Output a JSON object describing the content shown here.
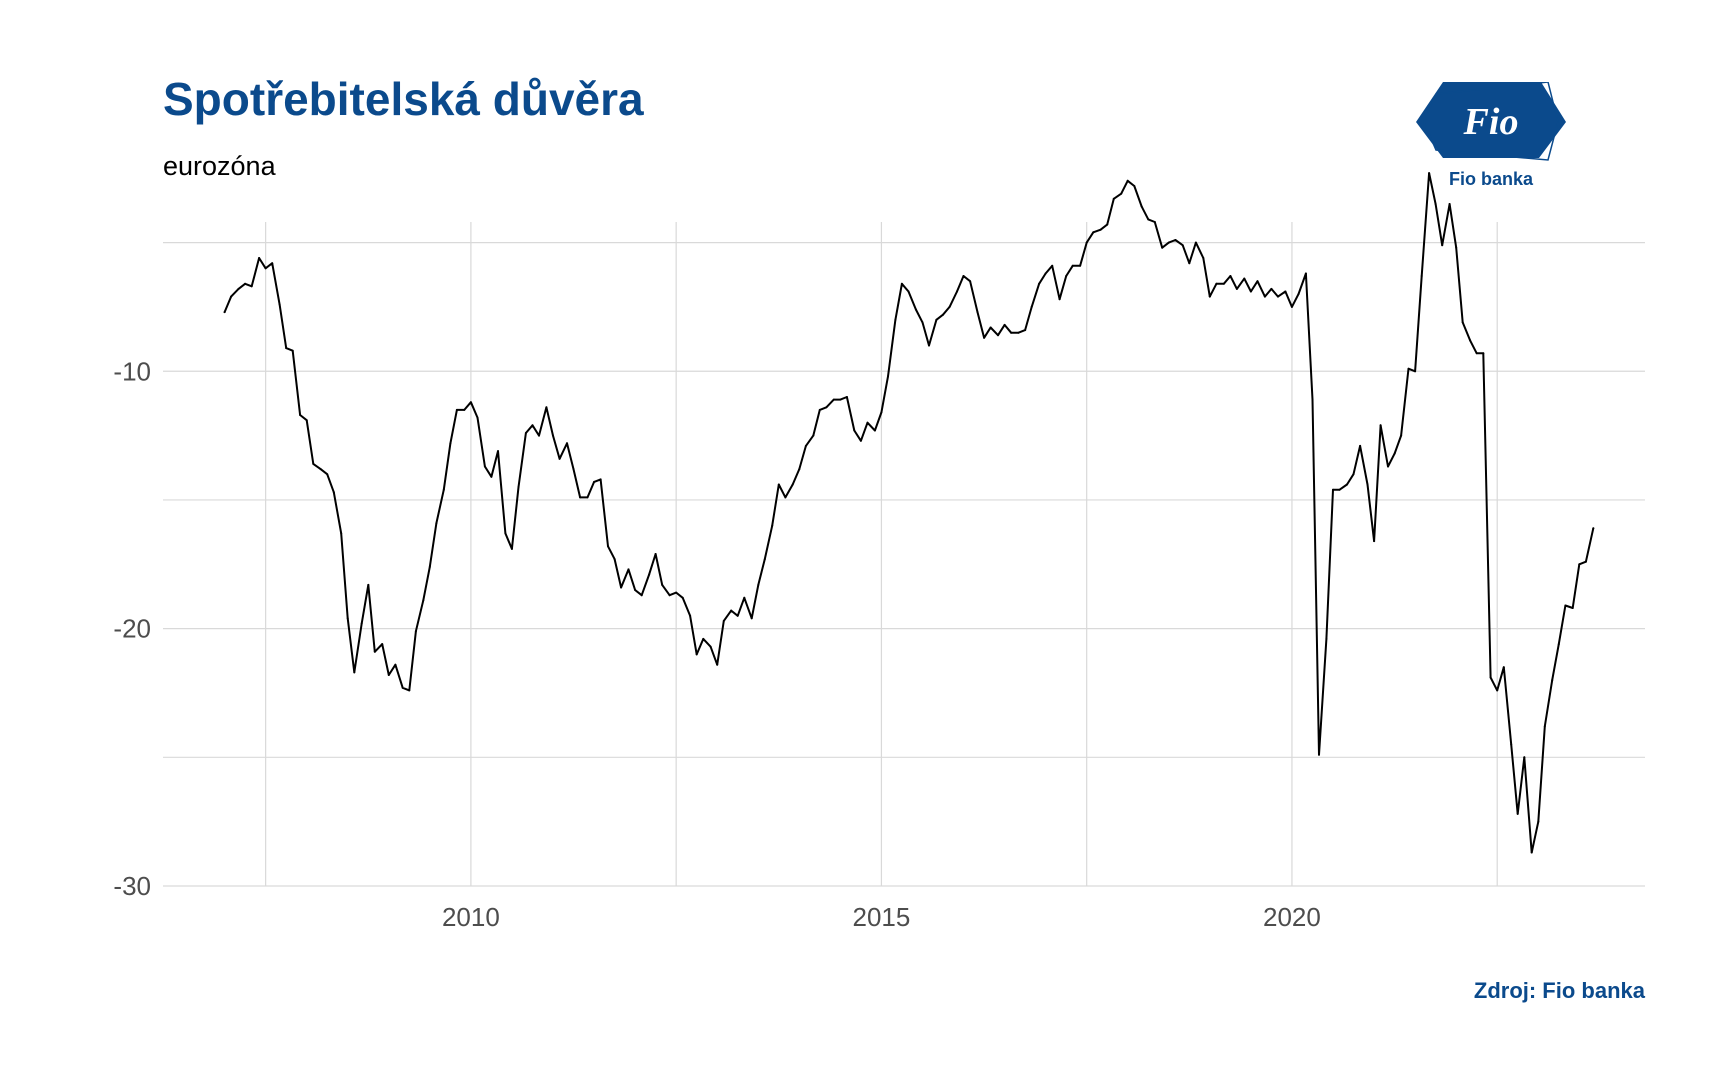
{
  "header": {
    "title": "Spotřebitelská důvěra",
    "subtitle": "eurozóna"
  },
  "logo": {
    "mark_text": "Fio",
    "caption": "Fio banka",
    "color": "#0B4A8C"
  },
  "footer": {
    "source": "Zdroj: Fio banka"
  },
  "chart_data": {
    "type": "line",
    "title": "Spotřebitelská důvěra",
    "subtitle": "eurozóna",
    "xlabel": "",
    "ylabel": "",
    "x_ticks": [
      2010,
      2015,
      2020
    ],
    "y_ticks": [
      -10,
      -20,
      -30
    ],
    "xlim": [
      2006.25,
      2024.3
    ],
    "ylim": [
      -30,
      -4.2
    ],
    "grid": true,
    "line_color": "#000000",
    "series": [
      {
        "points": [
          [
            2007.0,
            -7.7
          ],
          [
            2007.08,
            -7.1
          ],
          [
            2007.17,
            -6.8
          ],
          [
            2007.25,
            -6.6
          ],
          [
            2007.33,
            -6.7
          ],
          [
            2007.42,
            -5.6
          ],
          [
            2007.5,
            -6.0
          ],
          [
            2007.58,
            -5.8
          ],
          [
            2007.67,
            -7.4
          ],
          [
            2007.75,
            -9.1
          ],
          [
            2007.83,
            -9.2
          ],
          [
            2007.92,
            -11.7
          ],
          [
            2008.0,
            -11.9
          ],
          [
            2008.08,
            -13.6
          ],
          [
            2008.17,
            -13.8
          ],
          [
            2008.25,
            -14.0
          ],
          [
            2008.33,
            -14.7
          ],
          [
            2008.42,
            -16.3
          ],
          [
            2008.5,
            -19.6
          ],
          [
            2008.58,
            -21.7
          ],
          [
            2008.67,
            -19.8
          ],
          [
            2008.75,
            -18.3
          ],
          [
            2008.83,
            -20.9
          ],
          [
            2008.92,
            -20.6
          ],
          [
            2009.0,
            -21.8
          ],
          [
            2009.08,
            -21.4
          ],
          [
            2009.17,
            -22.3
          ],
          [
            2009.25,
            -22.4
          ],
          [
            2009.33,
            -20.1
          ],
          [
            2009.42,
            -18.9
          ],
          [
            2009.5,
            -17.6
          ],
          [
            2009.58,
            -15.9
          ],
          [
            2009.67,
            -14.6
          ],
          [
            2009.75,
            -12.8
          ],
          [
            2009.83,
            -11.5
          ],
          [
            2009.92,
            -11.5
          ],
          [
            2010.0,
            -11.2
          ],
          [
            2010.08,
            -11.8
          ],
          [
            2010.17,
            -13.7
          ],
          [
            2010.25,
            -14.1
          ],
          [
            2010.33,
            -13.1
          ],
          [
            2010.42,
            -16.3
          ],
          [
            2010.5,
            -16.9
          ],
          [
            2010.58,
            -14.5
          ],
          [
            2010.67,
            -12.4
          ],
          [
            2010.75,
            -12.1
          ],
          [
            2010.83,
            -12.5
          ],
          [
            2010.92,
            -11.4
          ],
          [
            2011.0,
            -12.5
          ],
          [
            2011.08,
            -13.4
          ],
          [
            2011.17,
            -12.8
          ],
          [
            2011.25,
            -13.8
          ],
          [
            2011.33,
            -14.9
          ],
          [
            2011.42,
            -14.9
          ],
          [
            2011.5,
            -14.3
          ],
          [
            2011.58,
            -14.2
          ],
          [
            2011.67,
            -16.8
          ],
          [
            2011.75,
            -17.3
          ],
          [
            2011.83,
            -18.4
          ],
          [
            2011.92,
            -17.7
          ],
          [
            2012.0,
            -18.5
          ],
          [
            2012.08,
            -18.7
          ],
          [
            2012.17,
            -17.9
          ],
          [
            2012.25,
            -17.1
          ],
          [
            2012.33,
            -18.3
          ],
          [
            2012.42,
            -18.7
          ],
          [
            2012.5,
            -18.6
          ],
          [
            2012.58,
            -18.8
          ],
          [
            2012.67,
            -19.5
          ],
          [
            2012.75,
            -21.0
          ],
          [
            2012.83,
            -20.4
          ],
          [
            2012.92,
            -20.7
          ],
          [
            2013.0,
            -21.4
          ],
          [
            2013.08,
            -19.7
          ],
          [
            2013.17,
            -19.3
          ],
          [
            2013.25,
            -19.5
          ],
          [
            2013.33,
            -18.8
          ],
          [
            2013.42,
            -19.6
          ],
          [
            2013.5,
            -18.3
          ],
          [
            2013.58,
            -17.3
          ],
          [
            2013.67,
            -16.0
          ],
          [
            2013.75,
            -14.4
          ],
          [
            2013.83,
            -14.9
          ],
          [
            2013.92,
            -14.4
          ],
          [
            2014.0,
            -13.8
          ],
          [
            2014.08,
            -12.9
          ],
          [
            2014.17,
            -12.5
          ],
          [
            2014.25,
            -11.5
          ],
          [
            2014.33,
            -11.4
          ],
          [
            2014.42,
            -11.1
          ],
          [
            2014.5,
            -11.1
          ],
          [
            2014.58,
            -11.0
          ],
          [
            2014.67,
            -12.3
          ],
          [
            2014.75,
            -12.7
          ],
          [
            2014.83,
            -12.0
          ],
          [
            2014.92,
            -12.3
          ],
          [
            2015.0,
            -11.6
          ],
          [
            2015.08,
            -10.2
          ],
          [
            2015.17,
            -8.0
          ],
          [
            2015.25,
            -6.6
          ],
          [
            2015.33,
            -6.9
          ],
          [
            2015.42,
            -7.6
          ],
          [
            2015.5,
            -8.1
          ],
          [
            2015.58,
            -9.0
          ],
          [
            2015.67,
            -8.0
          ],
          [
            2015.75,
            -7.8
          ],
          [
            2015.83,
            -7.5
          ],
          [
            2015.92,
            -6.9
          ],
          [
            2016.0,
            -6.3
          ],
          [
            2016.08,
            -6.5
          ],
          [
            2016.17,
            -7.7
          ],
          [
            2016.25,
            -8.7
          ],
          [
            2016.33,
            -8.3
          ],
          [
            2016.42,
            -8.6
          ],
          [
            2016.5,
            -8.2
          ],
          [
            2016.58,
            -8.5
          ],
          [
            2016.67,
            -8.5
          ],
          [
            2016.75,
            -8.4
          ],
          [
            2016.83,
            -7.5
          ],
          [
            2016.92,
            -6.6
          ],
          [
            2017.0,
            -6.2
          ],
          [
            2017.08,
            -5.9
          ],
          [
            2017.17,
            -7.2
          ],
          [
            2017.25,
            -6.3
          ],
          [
            2017.33,
            -5.9
          ],
          [
            2017.42,
            -5.9
          ],
          [
            2017.5,
            -5.0
          ],
          [
            2017.58,
            -4.6
          ],
          [
            2017.67,
            -4.5
          ],
          [
            2017.75,
            -4.3
          ],
          [
            2017.83,
            -3.3
          ],
          [
            2017.92,
            -3.1
          ],
          [
            2018.0,
            -2.6
          ],
          [
            2018.08,
            -2.8
          ],
          [
            2018.17,
            -3.6
          ],
          [
            2018.25,
            -4.1
          ],
          [
            2018.33,
            -4.2
          ],
          [
            2018.42,
            -5.2
          ],
          [
            2018.5,
            -5.0
          ],
          [
            2018.58,
            -4.9
          ],
          [
            2018.67,
            -5.1
          ],
          [
            2018.75,
            -5.8
          ],
          [
            2018.83,
            -5.0
          ],
          [
            2018.92,
            -5.6
          ],
          [
            2019.0,
            -7.1
          ],
          [
            2019.08,
            -6.6
          ],
          [
            2019.17,
            -6.6
          ],
          [
            2019.25,
            -6.3
          ],
          [
            2019.33,
            -6.8
          ],
          [
            2019.42,
            -6.4
          ],
          [
            2019.5,
            -6.9
          ],
          [
            2019.58,
            -6.5
          ],
          [
            2019.67,
            -7.1
          ],
          [
            2019.75,
            -6.8
          ],
          [
            2019.83,
            -7.1
          ],
          [
            2019.92,
            -6.9
          ],
          [
            2020.0,
            -7.5
          ],
          [
            2020.08,
            -7.0
          ],
          [
            2020.17,
            -6.2
          ],
          [
            2020.25,
            -11.1
          ],
          [
            2020.33,
            -24.9
          ],
          [
            2020.42,
            -20.4
          ],
          [
            2020.5,
            -14.6
          ],
          [
            2020.58,
            -14.6
          ],
          [
            2020.67,
            -14.4
          ],
          [
            2020.75,
            -14.0
          ],
          [
            2020.83,
            -12.9
          ],
          [
            2020.92,
            -14.4
          ],
          [
            2021.0,
            -16.6
          ],
          [
            2021.08,
            -12.1
          ],
          [
            2021.17,
            -13.7
          ],
          [
            2021.25,
            -13.2
          ],
          [
            2021.33,
            -12.5
          ],
          [
            2021.42,
            -9.9
          ],
          [
            2021.5,
            -10.0
          ],
          [
            2021.58,
            -6.3
          ],
          [
            2021.67,
            -2.3
          ],
          [
            2021.75,
            -3.5
          ],
          [
            2021.83,
            -5.1
          ],
          [
            2021.92,
            -3.5
          ],
          [
            2022.0,
            -5.2
          ],
          [
            2022.08,
            -8.1
          ],
          [
            2022.17,
            -8.8
          ],
          [
            2022.25,
            -9.3
          ],
          [
            2022.33,
            -9.3
          ],
          [
            2022.42,
            -21.9
          ],
          [
            2022.5,
            -22.4
          ],
          [
            2022.58,
            -21.5
          ],
          [
            2022.67,
            -24.5
          ],
          [
            2022.75,
            -27.2
          ],
          [
            2022.83,
            -25.0
          ],
          [
            2022.92,
            -28.7
          ],
          [
            2023.0,
            -27.5
          ],
          [
            2023.08,
            -23.8
          ],
          [
            2023.17,
            -22.0
          ],
          [
            2023.25,
            -20.6
          ],
          [
            2023.33,
            -19.1
          ],
          [
            2023.42,
            -19.2
          ],
          [
            2023.5,
            -17.5
          ],
          [
            2023.58,
            -17.4
          ],
          [
            2023.67,
            -16.1
          ]
        ]
      }
    ]
  }
}
